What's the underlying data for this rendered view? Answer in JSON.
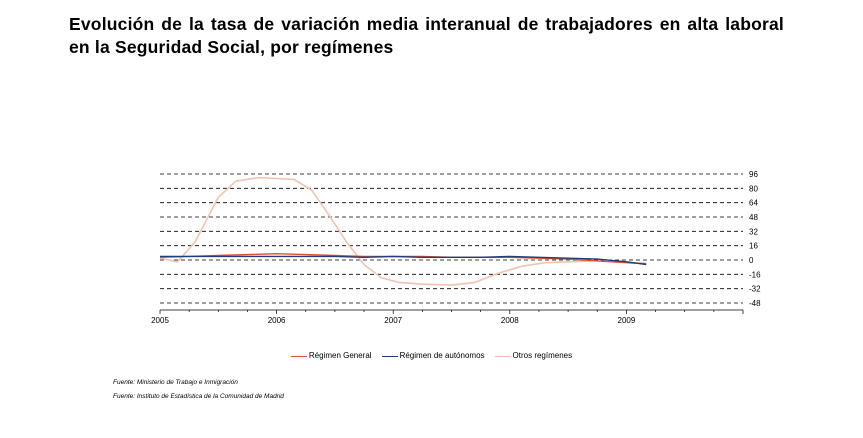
{
  "title": "Evolución de la tasa de variación media interanual de trabajadores en alta laboral en la Seguridad Social, por  regímenes",
  "sources": [
    "Fuente: Ministerio de Trabajo e Inmigración",
    "Fuente: Instituto de Estadística de la Comunidad de Madrid"
  ],
  "colors": {
    "general": "#e0502f",
    "autonomos": "#1f3d7a",
    "otros": "#f2c2b0",
    "grid": "#000000"
  },
  "chart_data": {
    "type": "line",
    "title": "",
    "xlabel": "",
    "ylabel": "",
    "xlim": [
      2005,
      2010
    ],
    "ylim": [
      -48,
      96
    ],
    "x_ticks": [
      "2005",
      "2006",
      "2007",
      "2008",
      "2009"
    ],
    "y_ticks": [
      96,
      80,
      64,
      48,
      32,
      16,
      0,
      -16,
      -32,
      -48
    ],
    "grid": true,
    "legend": "bottom",
    "series": [
      {
        "name": "Régimen General",
        "color": "#e0502f",
        "points": [
          [
            2005.0,
            3
          ],
          [
            2005.25,
            4
          ],
          [
            2005.5,
            5
          ],
          [
            2005.75,
            6
          ],
          [
            2006.0,
            7
          ],
          [
            2006.25,
            6
          ],
          [
            2006.5,
            5
          ],
          [
            2006.75,
            4
          ],
          [
            2007.0,
            4
          ],
          [
            2007.25,
            4
          ],
          [
            2007.5,
            3
          ],
          [
            2007.75,
            3
          ],
          [
            2008.0,
            3
          ],
          [
            2008.25,
            2
          ],
          [
            2008.5,
            1
          ],
          [
            2008.75,
            -1
          ],
          [
            2009.0,
            -3
          ],
          [
            2009.17,
            -4
          ]
        ]
      },
      {
        "name": "Régimen de autónomos",
        "color": "#1f3d7a",
        "points": [
          [
            2005.0,
            4
          ],
          [
            2005.25,
            4
          ],
          [
            2005.5,
            4
          ],
          [
            2005.75,
            4
          ],
          [
            2006.0,
            4
          ],
          [
            2006.25,
            4
          ],
          [
            2006.5,
            4
          ],
          [
            2006.75,
            3
          ],
          [
            2007.0,
            4
          ],
          [
            2007.25,
            3
          ],
          [
            2007.5,
            3
          ],
          [
            2007.75,
            3
          ],
          [
            2008.0,
            4
          ],
          [
            2008.25,
            3
          ],
          [
            2008.5,
            2
          ],
          [
            2008.75,
            1
          ],
          [
            2009.0,
            -2
          ],
          [
            2009.17,
            -5
          ]
        ]
      },
      {
        "name": "Otros regímenes",
        "color": "#f2c2b0",
        "points": [
          [
            2005.0,
            2
          ],
          [
            2005.15,
            -2
          ],
          [
            2005.3,
            20
          ],
          [
            2005.5,
            70
          ],
          [
            2005.65,
            88
          ],
          [
            2005.85,
            92
          ],
          [
            2006.0,
            91
          ],
          [
            2006.15,
            90
          ],
          [
            2006.3,
            78
          ],
          [
            2006.45,
            50
          ],
          [
            2006.6,
            20
          ],
          [
            2006.75,
            -5
          ],
          [
            2006.9,
            -20
          ],
          [
            2007.05,
            -25
          ],
          [
            2007.25,
            -27
          ],
          [
            2007.5,
            -28
          ],
          [
            2007.7,
            -25
          ],
          [
            2007.9,
            -15
          ],
          [
            2008.1,
            -7
          ],
          [
            2008.3,
            -3
          ],
          [
            2008.5,
            -2
          ],
          [
            2008.7,
            -1
          ]
        ]
      }
    ]
  }
}
